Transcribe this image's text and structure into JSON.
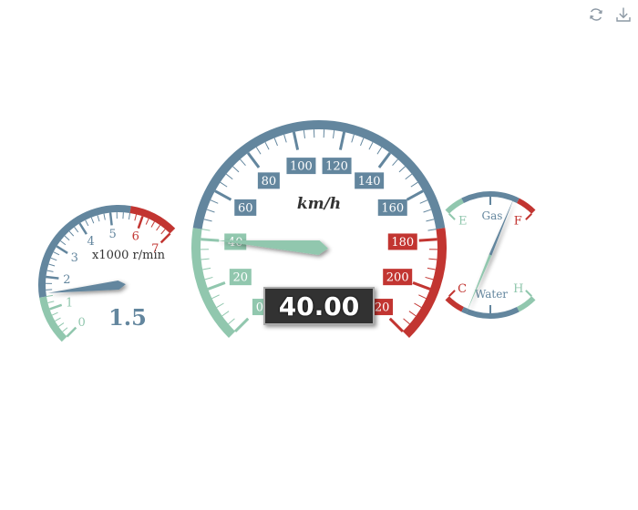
{
  "toolbar": {
    "buttons": [
      {
        "name": "restore",
        "icon": "refresh-icon"
      },
      {
        "name": "save-as-image",
        "icon": "download-icon"
      }
    ]
  },
  "colors": {
    "green": "#91c7ae",
    "blue": "#63869e",
    "red": "#c23531",
    "display_bg": "#333333",
    "display_text": "#ffffff",
    "pointer_speed": "#91c7ae",
    "pointer_rpm": "#63869e",
    "pointer_fuel": "#63869e",
    "pointer_temp": "#91c7ae"
  },
  "chart_data": [
    {
      "type": "gauge",
      "name": "speed",
      "unit_label": "km/h",
      "min": 0,
      "max": 220,
      "split_number": 11,
      "tick_labels": [
        "0",
        "20",
        "40",
        "60",
        "80",
        "100",
        "120",
        "140",
        "160",
        "180",
        "200",
        "220"
      ],
      "value": 40,
      "value_display": "40.00",
      "color_bands": [
        {
          "to_fraction": 0.2,
          "color": "green"
        },
        {
          "to_fraction": 0.8,
          "color": "blue"
        },
        {
          "to_fraction": 1.0,
          "color": "red"
        }
      ]
    },
    {
      "type": "gauge",
      "name": "rpm",
      "unit_label": "x1000 r/min",
      "min": 0,
      "max": 7,
      "split_number": 7,
      "tick_labels": [
        "0",
        "1",
        "2",
        "3",
        "4",
        "5",
        "6",
        "7"
      ],
      "value": 1.5,
      "value_display": "1.5",
      "color_bands": [
        {
          "to_fraction": 0.2,
          "color": "green"
        },
        {
          "to_fraction": 0.8,
          "color": "blue"
        },
        {
          "to_fraction": 1.0,
          "color": "red"
        }
      ]
    },
    {
      "type": "gauge",
      "name": "fuel",
      "title": "Gas",
      "min": 0,
      "max": 2,
      "end_labels": {
        "min": "E",
        "max": "F"
      },
      "value": 1.5,
      "color_bands": [
        {
          "to_fraction": 0.2,
          "color": "green"
        },
        {
          "to_fraction": 0.8,
          "color": "blue"
        },
        {
          "to_fraction": 1.0,
          "color": "red"
        }
      ]
    },
    {
      "type": "gauge",
      "name": "temperature",
      "title": "Water",
      "min": 0,
      "max": 2,
      "end_labels": {
        "min": "C",
        "max": "H"
      },
      "value": 0.5,
      "color_bands": [
        {
          "to_fraction": 0.2,
          "color": "red"
        },
        {
          "to_fraction": 0.8,
          "color": "blue"
        },
        {
          "to_fraction": 1.0,
          "color": "green"
        }
      ]
    }
  ]
}
